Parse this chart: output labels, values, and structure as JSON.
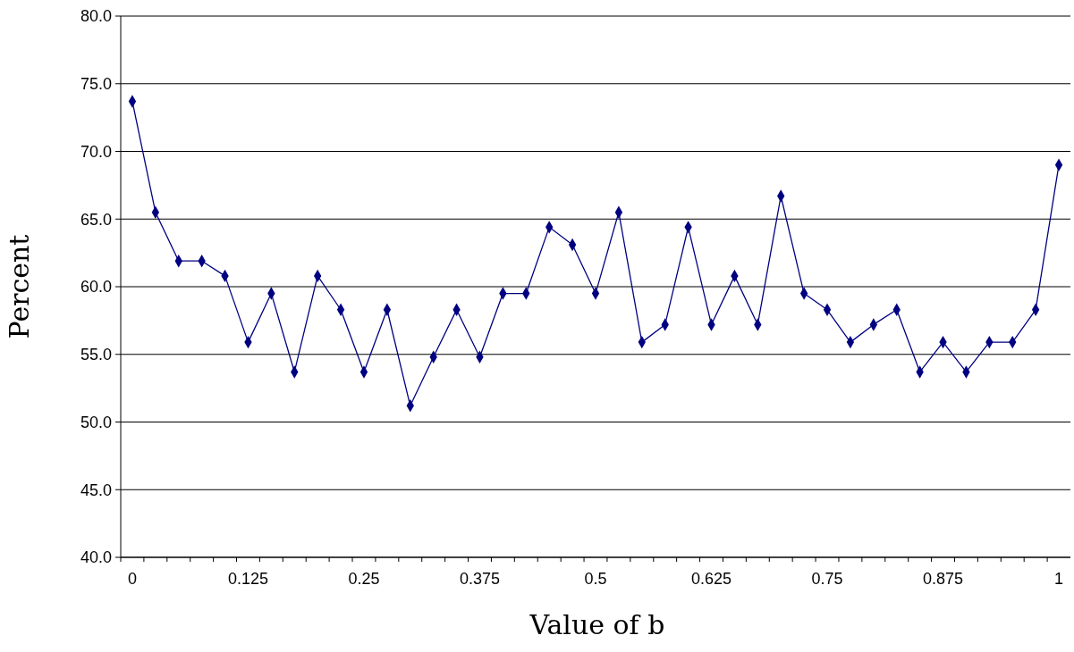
{
  "chart_data": {
    "type": "line",
    "xlabel": "Value of b",
    "ylabel": "Percent",
    "categories": [
      "0",
      null,
      null,
      null,
      null,
      "0.125",
      null,
      null,
      null,
      null,
      "0.25",
      null,
      null,
      null,
      null,
      "0.375",
      null,
      null,
      null,
      null,
      "0.5",
      null,
      null,
      null,
      null,
      "0.625",
      null,
      null,
      null,
      null,
      "0.75",
      null,
      null,
      null,
      null,
      "0.875",
      null,
      null,
      null,
      null,
      "1"
    ],
    "series": [
      {
        "color": "#000080",
        "values": [
          73.7,
          65.5,
          61.9,
          61.9,
          60.8,
          55.9,
          59.5,
          53.7,
          60.8,
          58.3,
          53.7,
          58.3,
          51.2,
          54.8,
          58.3,
          54.8,
          59.5,
          59.5,
          64.4,
          63.1,
          59.5,
          65.5,
          55.9,
          57.2,
          64.4,
          57.2,
          60.8,
          57.2,
          66.7,
          59.5,
          58.3,
          55.9,
          57.2,
          58.3,
          53.7,
          55.9,
          53.7,
          55.9,
          55.9,
          58.3,
          69.0
        ]
      }
    ],
    "ylim": [
      40,
      80
    ],
    "yticks": [
      {
        "value": 40,
        "label": "40.0"
      },
      {
        "value": 45,
        "label": "45.0"
      },
      {
        "value": 50,
        "label": "50.0"
      },
      {
        "value": 55,
        "label": "55.0"
      },
      {
        "value": 60,
        "label": "60.0"
      },
      {
        "value": 65,
        "label": "65.0"
      },
      {
        "value": 70,
        "label": "70.0"
      },
      {
        "value": 75,
        "label": "75.0"
      },
      {
        "value": 80,
        "label": "80.0"
      }
    ],
    "grid": "y",
    "marker": "diamond",
    "line_style": "solid"
  }
}
